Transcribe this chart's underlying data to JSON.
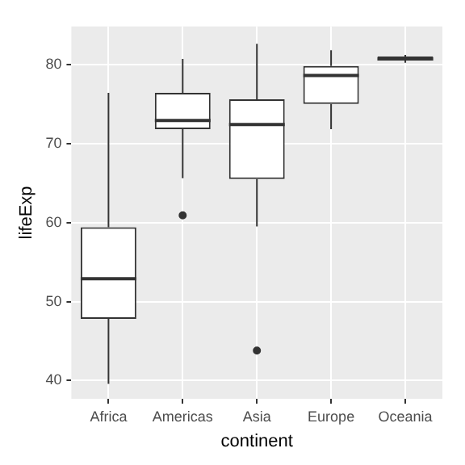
{
  "chart_data": {
    "type": "box",
    "xlabel": "continent",
    "ylabel": "lifeExp",
    "categories": [
      "Africa",
      "Americas",
      "Asia",
      "Europe",
      "Oceania"
    ],
    "boxes": [
      {
        "low": 39.6,
        "q1": 47.8,
        "median": 52.9,
        "q3": 59.4,
        "high": 76.4
      },
      {
        "low": 65.6,
        "q1": 71.8,
        "median": 72.9,
        "q3": 76.4,
        "high": 80.7,
        "outliers": [
          60.9
        ]
      },
      {
        "low": 59.5,
        "q1": 65.5,
        "median": 72.4,
        "q3": 75.6,
        "high": 82.6,
        "outliers": [
          43.8
        ]
      },
      {
        "low": 71.8,
        "q1": 75.0,
        "median": 78.6,
        "q3": 79.8,
        "high": 81.8
      },
      {
        "low": 80.2,
        "q1": 80.5,
        "median": 80.7,
        "q3": 81.0,
        "high": 81.2
      }
    ],
    "ylim": [
      37.7,
      84.8
    ],
    "yticks": [
      40,
      50,
      60,
      70,
      80
    ],
    "grid": true,
    "legend": false
  }
}
